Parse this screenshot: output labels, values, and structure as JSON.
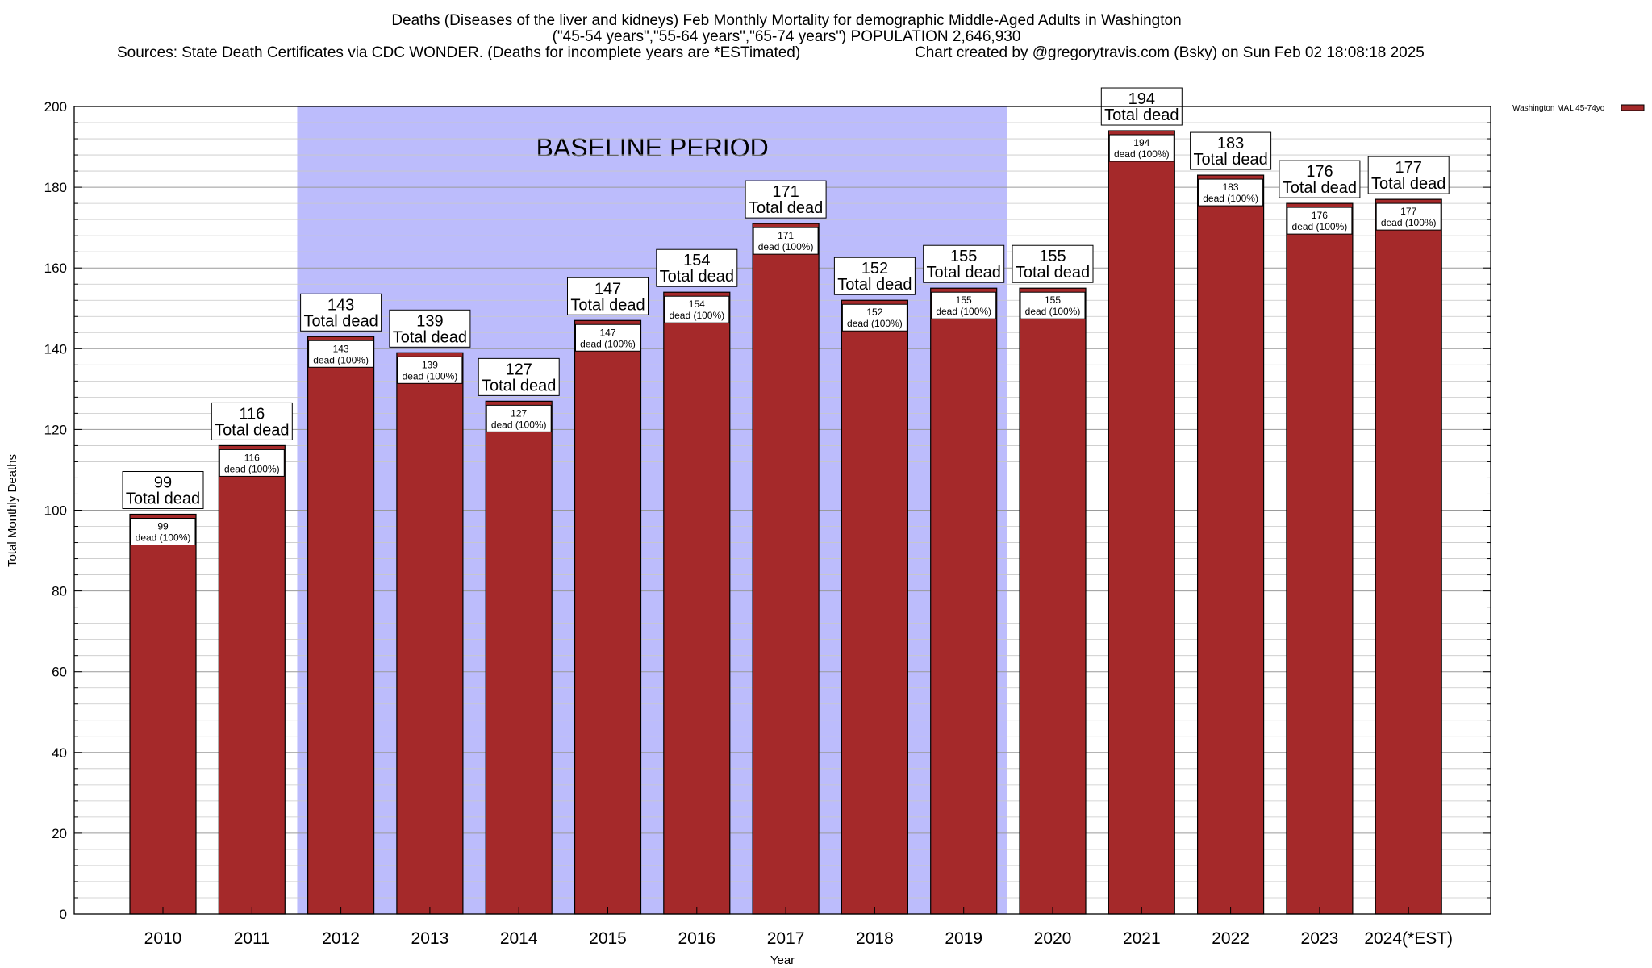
{
  "titles": {
    "line1": "Deaths (Diseases of the liver and kidneys) Feb Monthly Mortality for demographic Middle-Aged Adults in Washington",
    "line2": "(\"45-54 years\",\"55-64 years\",\"65-74 years\") POPULATION 2,646,930",
    "line3_left": "Sources: State Death Certificates via CDC WONDER. (Deaths for incomplete years are *ESTimated)",
    "line3_right": "Chart created by @gregorytravis.com (Bsky) on Sun Feb 02 18:08:18 2025"
  },
  "chart_data": {
    "type": "bar",
    "categories": [
      "2010",
      "2011",
      "2012",
      "2013",
      "2014",
      "2015",
      "2016",
      "2017",
      "2018",
      "2019",
      "2020",
      "2021",
      "2022",
      "2023",
      "2024(*EST)"
    ],
    "values": [
      99,
      116,
      143,
      139,
      127,
      147,
      154,
      171,
      152,
      155,
      155,
      194,
      183,
      176,
      177
    ],
    "series": [
      {
        "name": "Washington MAL 45-74yo",
        "values": [
          99,
          116,
          143,
          139,
          127,
          147,
          154,
          171,
          152,
          155,
          155,
          194,
          183,
          176,
          177
        ],
        "color": "#a5292a"
      }
    ],
    "total_label_text": "Total dead",
    "inner_label_text": "dead (100%)",
    "xlabel": "Year",
    "ylabel": "Total Monthly Deaths",
    "ylim": [
      0,
      200
    ],
    "yticks": [
      0,
      20,
      40,
      60,
      80,
      100,
      120,
      140,
      160,
      180,
      200
    ],
    "grid": true,
    "legend_position": "top-right",
    "baseline_period": {
      "label": "BASELINE PERIOD",
      "from_category": "2012",
      "to_category": "2019",
      "color": "#bcbcfc"
    },
    "colors": {
      "bar": "#a5292a",
      "bar_stroke": "#000000",
      "grid": "#b0b0b0"
    }
  }
}
